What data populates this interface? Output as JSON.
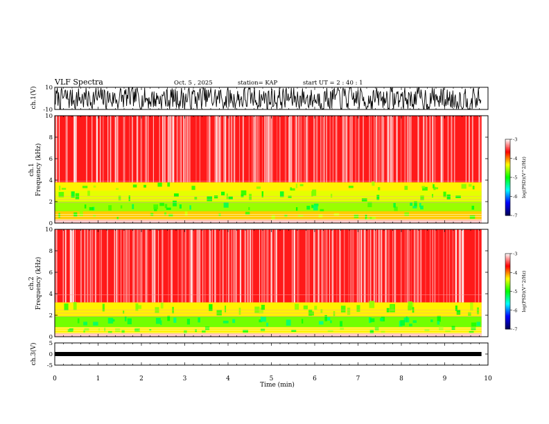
{
  "header": {
    "title": "VLF Spectra",
    "date": "Oct. 5 , 2025",
    "station": "station= KAP",
    "start": "start UT = 2 : 40 : 1"
  },
  "chart_data": {
    "type": "heatmap",
    "title": "VLF Spectra",
    "xlabel": "Time (min)",
    "xlim": [
      0,
      10
    ],
    "xticks": [
      "0",
      "1",
      "2",
      "3",
      "4",
      "5",
      "6",
      "7",
      "8",
      "9",
      "10"
    ],
    "data_end_min": 9.85,
    "panels": {
      "ch1_waveform": {
        "ylabel": "ch.1(V)",
        "ylim": [
          -10,
          10
        ],
        "yticks": [
          "10",
          "-10"
        ]
      },
      "ch1_spectrogram": {
        "ylabel_line1": "ch.1",
        "ylabel_line2": "Frequency (kHz)",
        "ylim": [
          0,
          10
        ],
        "yticks": [
          "0",
          "2",
          "4",
          "6",
          "8",
          "10"
        ],
        "bands": [
          {
            "fmin": 0.3,
            "fmax": 1.1,
            "level": -4.2
          },
          {
            "fmin": 1.1,
            "fmax": 2.0,
            "level": -4.6
          },
          {
            "fmin": 2.0,
            "fmax": 3.0,
            "level": -4.4
          },
          {
            "fmin": 3.0,
            "fmax": 3.8,
            "level": -4.3
          },
          {
            "fmin": 3.8,
            "fmax": 10.0,
            "level": -3.6
          }
        ]
      },
      "ch2_spectrogram": {
        "ylabel_line1": "ch.2",
        "ylabel_line2": "Frequency (kHz)",
        "ylim": [
          0,
          10
        ],
        "yticks": [
          "0",
          "2",
          "4",
          "6",
          "8",
          "10"
        ],
        "bands": [
          {
            "fmin": 0.3,
            "fmax": 0.9,
            "level": -4.3
          },
          {
            "fmin": 0.9,
            "fmax": 1.9,
            "level": -4.7
          },
          {
            "fmin": 1.9,
            "fmax": 3.2,
            "level": -4.3
          },
          {
            "fmin": 3.2,
            "fmax": 10.0,
            "level": -3.6
          }
        ]
      },
      "ch3_waveform": {
        "ylabel": "ch.3(V)",
        "ylim": [
          -5,
          5
        ],
        "yticks": [
          "5",
          "0",
          "-5"
        ],
        "level_v": 0.0
      }
    },
    "colorbar": {
      "label": "log(PSD)(V^2/Hz)",
      "range": [
        -7,
        -3
      ],
      "ticks": [
        "-3",
        "-4",
        "-5",
        "-6",
        "-7"
      ],
      "colors": [
        "#000055",
        "#0000ff",
        "#00ffff",
        "#00ff00",
        "#ffff00",
        "#ff0000",
        "#ffffff"
      ]
    }
  }
}
